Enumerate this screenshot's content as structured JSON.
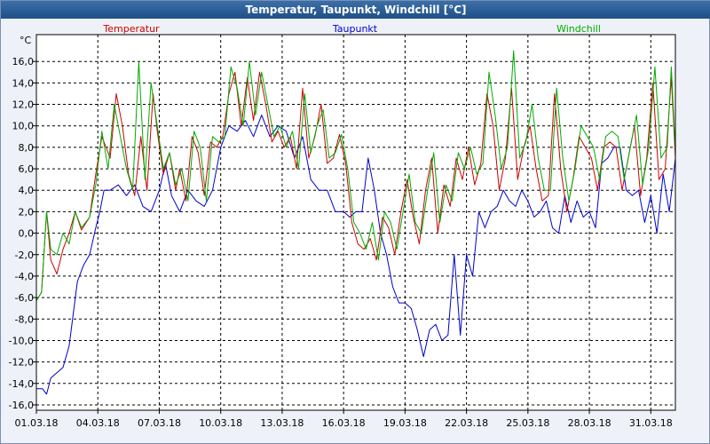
{
  "window": {
    "title": "Temperatur, Taupunkt, Windchill [°C]"
  },
  "colors": {
    "temperatur": "#cc0000",
    "taupunkt": "#0000cc",
    "windchill": "#00aa00",
    "grid": "#000000",
    "plot_bg": "#ffffff"
  },
  "chart_data": {
    "type": "line",
    "title": "Temperatur, Taupunkt, Windchill [°C]",
    "ylabel": "°C",
    "xlabel": "",
    "ylim": [
      -16.5,
      18.5
    ],
    "xlim": [
      0,
      31.2
    ],
    "grid": true,
    "legend_position": "top",
    "yticks": [
      16,
      14,
      12,
      10,
      8,
      6,
      4,
      2,
      0,
      -2,
      -4,
      -6,
      -8,
      -10,
      -12,
      -14,
      -16
    ],
    "ytick_labels": [
      "16,0",
      "14,0",
      "12,0",
      "10,0",
      "8,0",
      "6,0",
      "4,0",
      "2,0",
      "0,0",
      "-2,0",
      "-4,0",
      "-6,0",
      "-8,0",
      "-10,0",
      "-12,0",
      "-14,0",
      "-16,0"
    ],
    "xticks": [
      0,
      3,
      6,
      9,
      12,
      15,
      18,
      21,
      24,
      27,
      30
    ],
    "xtick_labels": [
      "01.03.18",
      "04.03.18",
      "07.03.18",
      "10.03.18",
      "13.03.18",
      "16.03.18",
      "19.03.18",
      "22.03.18",
      "25.03.18",
      "28.03.18",
      "31.03.18"
    ],
    "series": [
      {
        "name": "Temperatur",
        "x": [
          0,
          0.25,
          0.5,
          0.7,
          1.0,
          1.3,
          1.6,
          1.9,
          2.2,
          2.6,
          2.9,
          3.2,
          3.6,
          3.9,
          4.2,
          4.5,
          4.8,
          5.1,
          5.4,
          5.7,
          5.9,
          6.2,
          6.5,
          6.8,
          7.0,
          7.3,
          7.6,
          7.9,
          8.2,
          8.5,
          8.8,
          9.1,
          9.4,
          9.7,
          10.0,
          10.3,
          10.6,
          10.9,
          11.2,
          11.5,
          11.8,
          12.1,
          12.4,
          12.7,
          13.0,
          13.3,
          13.6,
          13.9,
          14.2,
          14.5,
          14.8,
          15.1,
          15.4,
          15.7,
          16.0,
          16.3,
          16.6,
          16.9,
          17.2,
          17.5,
          17.8,
          18.1,
          18.4,
          18.7,
          19.0,
          19.3,
          19.6,
          19.9,
          20.2,
          20.5,
          20.8,
          21.1,
          21.4,
          21.7,
          22.0,
          22.3,
          22.6,
          22.9,
          23.2,
          23.5,
          23.8,
          24.1,
          24.4,
          24.7,
          25.0,
          25.3,
          25.6,
          25.9,
          26.2,
          26.5,
          26.8,
          27.1,
          27.4,
          27.7,
          28.0,
          28.3,
          28.6,
          28.9,
          29.2,
          29.5,
          29.8,
          30.1,
          30.4,
          30.7,
          31.0,
          31.2
        ],
        "values": [
          -6.3,
          -5.5,
          2.0,
          -2.5,
          -3.8,
          -1.5,
          0.0,
          2.0,
          0.3,
          1.5,
          5.5,
          9.0,
          7.0,
          13.0,
          10.0,
          5.5,
          3.5,
          9.0,
          4.0,
          13.0,
          9.5,
          5.5,
          7.5,
          4.0,
          6.0,
          3.0,
          9.0,
          7.5,
          3.5,
          8.5,
          8.0,
          9.0,
          13.0,
          15.0,
          10.0,
          14.5,
          10.5,
          15.0,
          12.0,
          8.5,
          9.5,
          8.0,
          9.0,
          6.0,
          13.5,
          7.0,
          9.0,
          12.0,
          6.5,
          7.0,
          9.2,
          6.5,
          1.0,
          -1.0,
          -1.5,
          -0.5,
          -2.5,
          1.5,
          0.5,
          -2.0,
          2.0,
          5.0,
          1.5,
          -1.0,
          4.0,
          7.0,
          0.0,
          4.5,
          2.5,
          7.0,
          5.0,
          8.0,
          4.5,
          6.5,
          13.0,
          10.0,
          4.0,
          7.0,
          13.5,
          5.0,
          8.0,
          10.0,
          6.0,
          3.0,
          3.5,
          13.0,
          6.0,
          2.0,
          5.0,
          9.0,
          8.0,
          7.0,
          4.0,
          8.0,
          8.5,
          8.0,
          4.0,
          7.0,
          10.0,
          3.5,
          7.0,
          14.0,
          5.0,
          6.0,
          14.5,
          7.0
        ]
      },
      {
        "name": "Taupunkt",
        "x": [
          0,
          0.3,
          0.5,
          0.7,
          1.0,
          1.3,
          1.6,
          2.0,
          2.3,
          2.6,
          2.9,
          3.1,
          3.3,
          3.6,
          4.0,
          4.4,
          4.8,
          5.2,
          5.6,
          6.0,
          6.3,
          6.6,
          7.0,
          7.4,
          7.8,
          8.2,
          8.6,
          9.0,
          9.4,
          9.8,
          10.2,
          10.6,
          11.0,
          11.4,
          11.8,
          12.2,
          12.6,
          13.0,
          13.4,
          13.8,
          14.2,
          14.6,
          15.0,
          15.3,
          15.6,
          15.9,
          16.2,
          16.5,
          16.8,
          17.1,
          17.4,
          17.7,
          18.0,
          18.3,
          18.6,
          18.9,
          19.2,
          19.5,
          19.8,
          20.1,
          20.4,
          20.7,
          21.0,
          21.3,
          21.6,
          21.9,
          22.2,
          22.5,
          22.8,
          23.1,
          23.4,
          23.7,
          24.0,
          24.3,
          24.6,
          24.9,
          25.2,
          25.5,
          25.8,
          26.1,
          26.4,
          26.7,
          27.0,
          27.3,
          27.6,
          27.9,
          28.2,
          28.5,
          28.8,
          29.1,
          29.4,
          29.7,
          30.0,
          30.3,
          30.6,
          30.9,
          31.2
        ],
        "values": [
          -14.5,
          -14.5,
          -15.0,
          -13.5,
          -13.0,
          -12.5,
          -10.5,
          -4.5,
          -3.0,
          -2.0,
          0.5,
          2.0,
          4.0,
          4.0,
          4.5,
          3.5,
          4.5,
          2.5,
          2.0,
          4.0,
          6.5,
          3.5,
          2.0,
          4.0,
          3.0,
          2.5,
          4.0,
          8.0,
          10.0,
          9.5,
          10.5,
          9.0,
          11.0,
          9.0,
          10.0,
          9.5,
          7.0,
          9.0,
          5.0,
          4.0,
          4.0,
          2.0,
          2.0,
          1.5,
          2.0,
          2.0,
          7.0,
          4.0,
          0.0,
          -2.0,
          -5.0,
          -6.5,
          -6.5,
          -7.0,
          -9.0,
          -11.5,
          -9.0,
          -8.5,
          -10.0,
          -9.5,
          -2.0,
          -9.5,
          -2.0,
          -4.0,
          2.0,
          0.5,
          2.0,
          2.5,
          4.0,
          3.0,
          2.5,
          4.0,
          3.0,
          1.5,
          2.0,
          3.0,
          0.5,
          0.0,
          3.5,
          1.0,
          3.0,
          1.5,
          2.0,
          0.5,
          6.5,
          7.0,
          8.0,
          8.0,
          4.0,
          3.5,
          4.0,
          1.0,
          3.5,
          0.0,
          5.5,
          2.0,
          7.0
        ]
      },
      {
        "name": "Windchill",
        "x": [
          0,
          0.25,
          0.5,
          0.7,
          1.0,
          1.3,
          1.6,
          1.9,
          2.2,
          2.6,
          2.9,
          3.2,
          3.5,
          3.8,
          4.1,
          4.4,
          4.7,
          5.0,
          5.3,
          5.6,
          5.9,
          6.2,
          6.5,
          6.8,
          7.1,
          7.4,
          7.7,
          8.0,
          8.3,
          8.6,
          8.9,
          9.2,
          9.5,
          9.8,
          10.1,
          10.4,
          10.7,
          11.0,
          11.3,
          11.6,
          11.9,
          12.2,
          12.5,
          12.8,
          13.1,
          13.4,
          13.7,
          14.0,
          14.3,
          14.6,
          14.9,
          15.2,
          15.5,
          15.8,
          16.1,
          16.4,
          16.7,
          17.0,
          17.3,
          17.6,
          17.9,
          18.2,
          18.5,
          18.8,
          19.1,
          19.4,
          19.7,
          20.0,
          20.3,
          20.6,
          20.9,
          21.2,
          21.5,
          21.8,
          22.1,
          22.4,
          22.7,
          23.0,
          23.3,
          23.6,
          23.9,
          24.2,
          24.5,
          24.8,
          25.1,
          25.4,
          25.7,
          26.0,
          26.3,
          26.6,
          26.9,
          27.2,
          27.5,
          27.8,
          28.1,
          28.4,
          28.7,
          29.0,
          29.3,
          29.6,
          29.9,
          30.2,
          30.5,
          30.8,
          31.0,
          31.2
        ],
        "values": [
          -6.3,
          -5.5,
          2.0,
          -1.5,
          -2.0,
          0.0,
          -1.0,
          2.0,
          0.5,
          1.5,
          4.5,
          9.5,
          6.0,
          12.0,
          9.0,
          6.0,
          4.0,
          16.0,
          5.0,
          14.0,
          10.0,
          6.0,
          7.5,
          4.5,
          6.0,
          3.0,
          9.5,
          8.0,
          3.0,
          9.0,
          8.5,
          9.0,
          15.5,
          13.5,
          10.0,
          16.0,
          11.0,
          15.0,
          12.0,
          9.0,
          10.0,
          8.0,
          9.5,
          6.0,
          13.0,
          7.5,
          10.0,
          11.5,
          7.0,
          7.5,
          9.2,
          6.0,
          1.0,
          0.0,
          -1.5,
          1.0,
          -2.5,
          2.0,
          1.0,
          -1.5,
          2.0,
          5.5,
          1.0,
          0.0,
          4.0,
          7.5,
          1.0,
          4.5,
          3.0,
          7.5,
          6.0,
          8.0,
          5.5,
          6.5,
          15.0,
          11.0,
          6.0,
          8.0,
          17.0,
          7.0,
          8.5,
          12.0,
          7.0,
          4.0,
          4.0,
          13.5,
          7.0,
          3.0,
          6.0,
          10.0,
          9.0,
          8.0,
          5.0,
          9.0,
          9.5,
          9.0,
          5.0,
          8.0,
          11.0,
          4.5,
          8.0,
          15.5,
          7.0,
          8.0,
          15.5,
          7.5
        ]
      }
    ]
  }
}
